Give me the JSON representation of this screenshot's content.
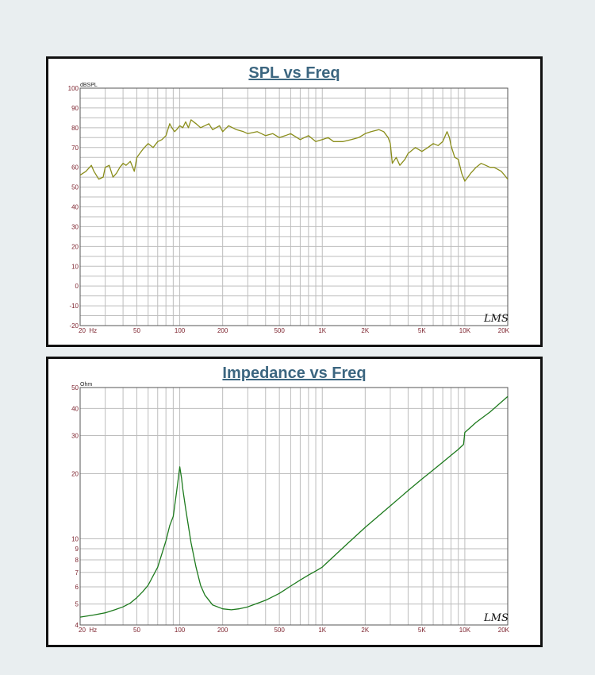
{
  "chart_data": [
    {
      "type": "line",
      "title": "SPL vs Freq",
      "ylabel": "dBSPL",
      "xscale": "log",
      "xlim": [
        20,
        20000
      ],
      "ylim": [
        -20,
        100
      ],
      "grid": true,
      "brand": "LMS",
      "x_tick_values": [
        20,
        50,
        100,
        200,
        500,
        1000,
        2000,
        5000,
        10000,
        20000
      ],
      "x_tick_labels": [
        "20  Hz",
        "50",
        "100",
        "200",
        "500",
        "1K",
        "2K",
        "5K",
        "10K",
        "20K"
      ],
      "y_tick_values": [
        -20,
        -10,
        0,
        10,
        20,
        30,
        40,
        50,
        60,
        70,
        80,
        90,
        100
      ],
      "y_tick_labels": [
        "-20",
        "-10",
        "0",
        "10",
        "20",
        "30",
        "40",
        "50",
        "60",
        "70",
        "80",
        "90",
        "100"
      ],
      "colors": {
        "line": "#8a8d1a",
        "grid": "#bdbdbd",
        "ticks": "#7a1f2a",
        "plot_border": "#555555"
      },
      "series": [
        {
          "x": [
            20,
            22,
            24,
            25,
            27,
            29,
            30,
            32,
            34,
            36,
            38,
            40,
            42,
            45,
            48,
            50,
            55,
            60,
            65,
            70,
            75,
            80,
            85,
            88,
            92,
            95,
            100,
            105,
            110,
            115,
            120,
            130,
            140,
            150,
            160,
            170,
            180,
            190,
            200,
            220,
            250,
            280,
            300,
            350,
            400,
            450,
            500,
            550,
            600,
            700,
            800,
            900,
            1000,
            1100,
            1200,
            1400,
            1600,
            1800,
            2000,
            2200,
            2500,
            2700,
            2900,
            3000,
            3100,
            3300,
            3500,
            3800,
            4000,
            4500,
            5000,
            5500,
            6000,
            6500,
            7000,
            7500,
            7800,
            8000,
            8500,
            9000,
            9500,
            10000,
            10500,
            11000,
            12000,
            13000,
            14000,
            15000,
            16000,
            17000,
            18000,
            19000,
            20000
          ],
          "y": [
            56,
            58,
            61,
            58,
            54,
            55,
            60,
            61,
            55,
            57,
            60,
            62,
            61,
            63,
            58,
            65,
            69,
            72,
            70,
            73,
            74,
            76,
            82,
            80,
            78,
            79,
            81,
            80,
            83,
            80,
            84,
            82,
            80,
            81,
            82,
            79,
            80,
            81,
            78,
            81,
            79,
            78,
            77,
            78,
            76,
            77,
            75,
            76,
            77,
            74,
            76,
            73,
            74,
            75,
            73,
            73,
            74,
            75,
            77,
            78,
            79,
            78,
            75,
            72,
            62,
            65,
            61,
            64,
            67,
            70,
            68,
            70,
            72,
            71,
            73,
            78,
            75,
            71,
            65,
            64,
            57,
            53,
            55,
            57,
            60,
            62,
            61,
            60,
            60,
            59,
            58,
            56,
            54
          ]
        }
      ]
    },
    {
      "type": "line",
      "title": "Impedance vs Freq",
      "ylabel": "Ohm",
      "xscale": "log",
      "yscale": "log",
      "xlim": [
        20,
        20000
      ],
      "ylim": [
        4,
        50
      ],
      "grid": true,
      "brand": "LMS",
      "x_tick_values": [
        20,
        50,
        100,
        200,
        500,
        1000,
        2000,
        5000,
        10000,
        20000
      ],
      "x_tick_labels": [
        "20  Hz",
        "50",
        "100",
        "200",
        "500",
        "1K",
        "2K",
        "5K",
        "10K",
        "20K"
      ],
      "y_tick_values": [
        4,
        5,
        6,
        7,
        8,
        9,
        10,
        20,
        30,
        40,
        50
      ],
      "y_tick_labels": [
        "4",
        "5",
        "6",
        "7",
        "8",
        "9",
        "10",
        "20",
        "30",
        "40",
        "50"
      ],
      "colors": {
        "line": "#1d7a1d",
        "grid": "#bdbdbd",
        "ticks": "#7a1f2a",
        "plot_border": "#555555"
      },
      "series": [
        {
          "x": [
            20,
            25,
            30,
            35,
            40,
            45,
            50,
            55,
            60,
            70,
            80,
            85,
            90,
            95,
            100,
            103,
            105,
            110,
            120,
            130,
            140,
            150,
            170,
            200,
            230,
            260,
            300,
            400,
            500,
            600,
            700,
            800,
            900,
            1000,
            1020,
            1500,
            2000,
            3000,
            4000,
            5000,
            6000,
            7000,
            8000,
            9000,
            9800,
            10000,
            12000,
            15000,
            20000
          ],
          "y": [
            4.35,
            4.45,
            4.55,
            4.7,
            4.85,
            5.05,
            5.35,
            5.7,
            6.1,
            7.4,
            9.8,
            11.5,
            12.7,
            16.5,
            21.5,
            19.0,
            17.0,
            13.8,
            9.6,
            7.4,
            6.1,
            5.5,
            4.95,
            4.75,
            4.7,
            4.75,
            4.85,
            5.2,
            5.6,
            6.05,
            6.45,
            6.8,
            7.1,
            7.4,
            7.5,
            9.5,
            11.3,
            14.2,
            16.7,
            18.9,
            20.8,
            22.6,
            24.3,
            25.9,
            27.3,
            31.0,
            34.5,
            38.5,
            45.5
          ]
        }
      ]
    }
  ]
}
